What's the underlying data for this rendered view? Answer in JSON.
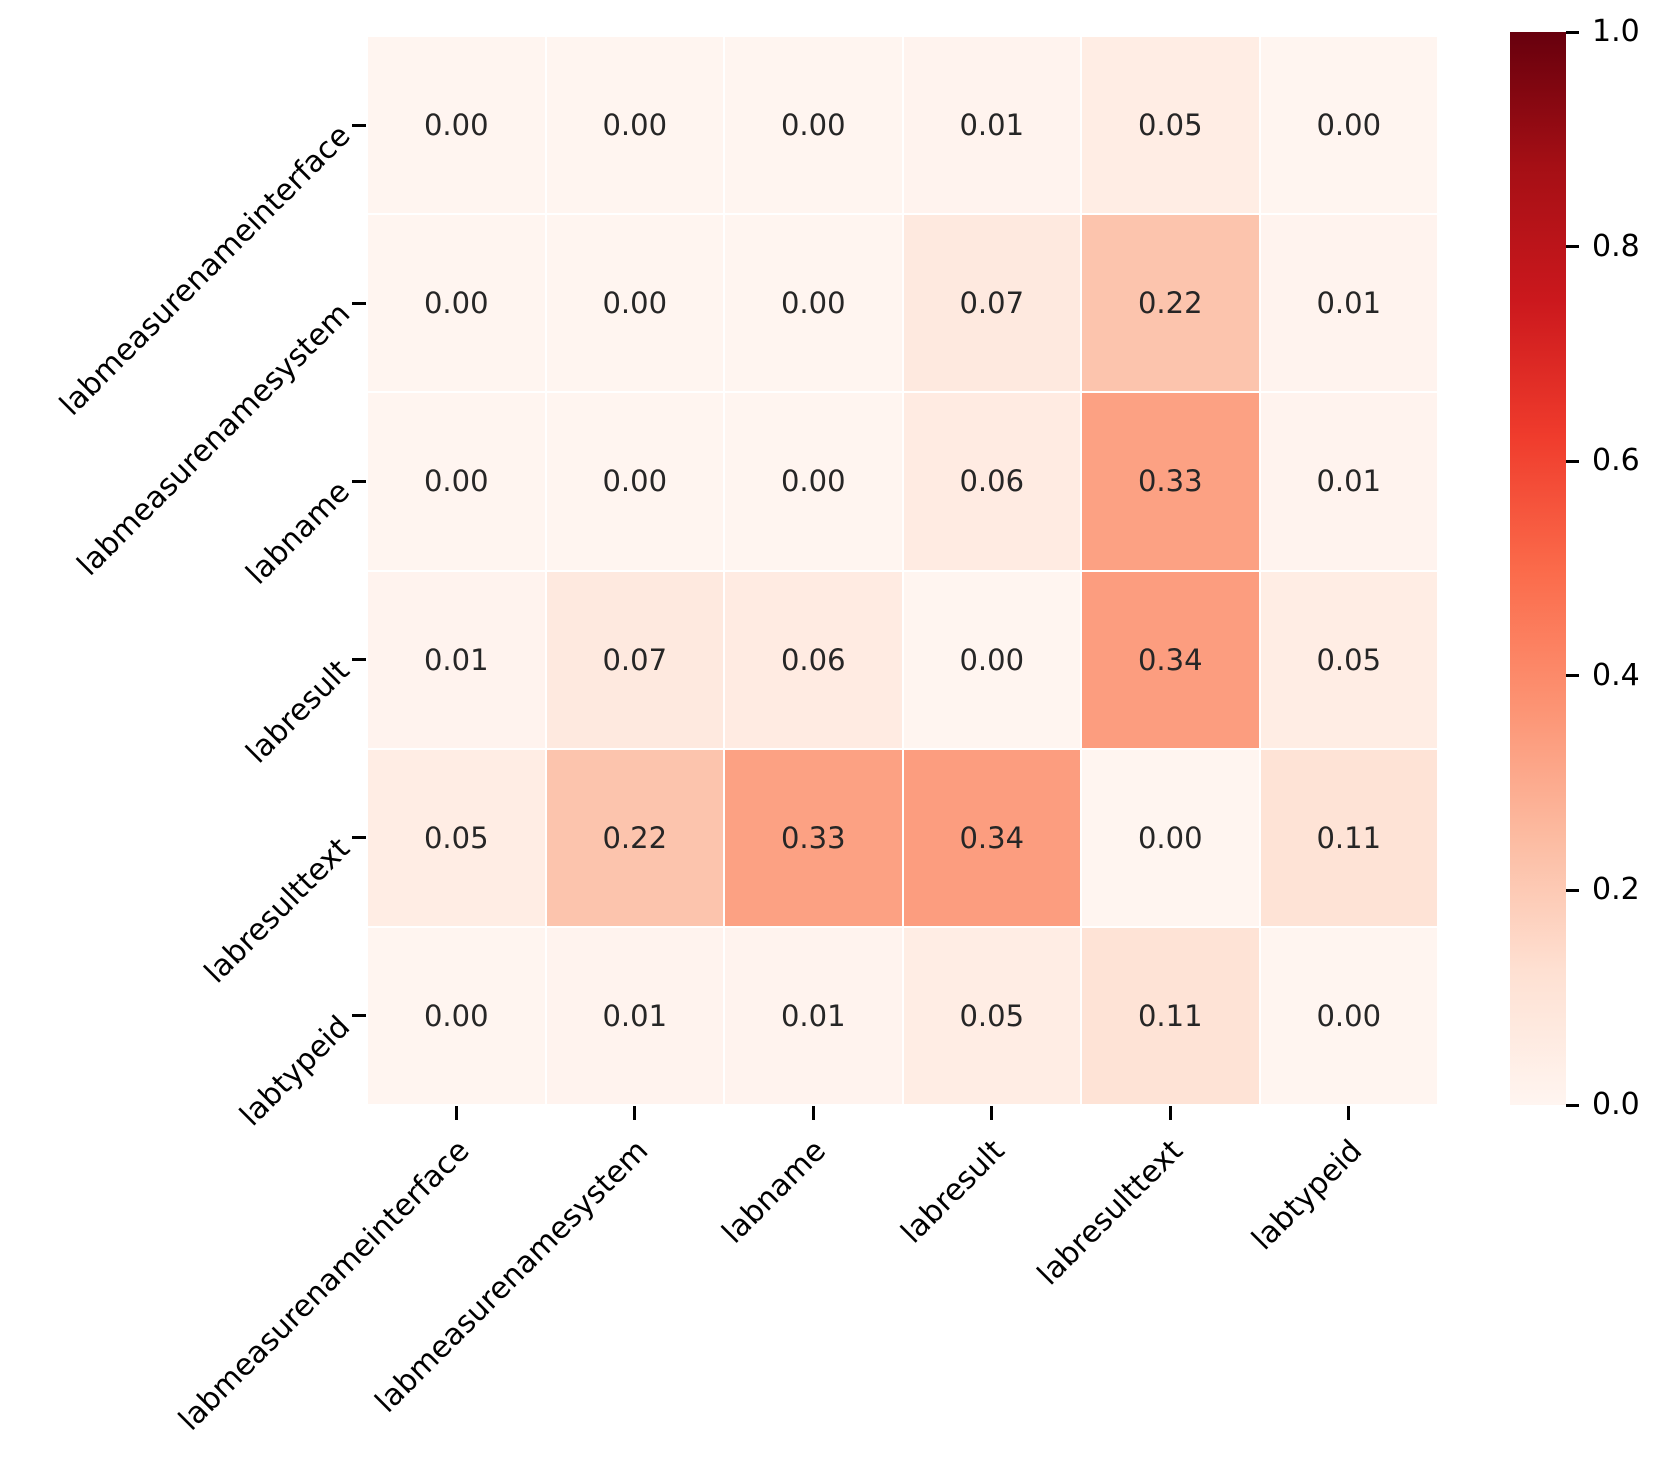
{
  "chart_data": {
    "type": "heatmap",
    "title": "",
    "xlabel": "",
    "ylabel": "",
    "categories": [
      "labmeasurenameinterface",
      "labmeasurenamesystem",
      "labname",
      "labresult",
      "labresulttext",
      "labtypeid"
    ],
    "x_categories": [
      "labmeasurenameinterface",
      "labmeasurenamesystem",
      "labname",
      "labresult",
      "labresulttext",
      "labtypeid"
    ],
    "matrix": [
      [
        0.0,
        0.0,
        0.0,
        0.01,
        0.05,
        0.0
      ],
      [
        0.0,
        0.0,
        0.0,
        0.07,
        0.22,
        0.01
      ],
      [
        0.0,
        0.0,
        0.0,
        0.06,
        0.33,
        0.01
      ],
      [
        0.01,
        0.07,
        0.06,
        0.0,
        0.34,
        0.05
      ],
      [
        0.05,
        0.22,
        0.33,
        0.34,
        0.0,
        0.11
      ],
      [
        0.0,
        0.01,
        0.01,
        0.05,
        0.11,
        0.0
      ]
    ],
    "annotation_decimals": 2,
    "annotation_color": "#262626",
    "tick_color": "#000000",
    "grid_line_color": "#ffffff",
    "background_color": "#ffffff",
    "x_tick_rotation_deg": 45,
    "y_tick_rotation_deg": 45,
    "colorbar": {
      "min": 0.0,
      "max": 1.0,
      "position": "right",
      "tick_values": [
        1.0,
        0.8,
        0.6,
        0.4,
        0.2,
        0.0
      ],
      "tick_labels": [
        "1.0",
        "0.8",
        "0.6",
        "0.4",
        "0.2",
        "0.0"
      ]
    },
    "colormap": {
      "name": "Reds",
      "anchors": [
        [
          0.0,
          "#fff5f0"
        ],
        [
          0.125,
          "#fee0d2"
        ],
        [
          0.25,
          "#fcbba1"
        ],
        [
          0.375,
          "#fc9272"
        ],
        [
          0.5,
          "#fb6a4a"
        ],
        [
          0.625,
          "#ef3b2c"
        ],
        [
          0.75,
          "#cb181d"
        ],
        [
          0.875,
          "#a50f15"
        ],
        [
          1.0,
          "#67000d"
        ]
      ]
    }
  }
}
